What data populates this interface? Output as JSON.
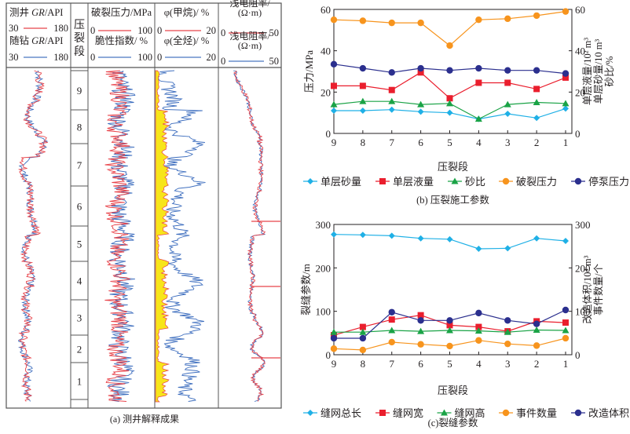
{
  "panel_a": {
    "caption": "(a) 测井解释成果",
    "columns": [
      {
        "id": "gr",
        "lines": [
          {
            "label": "测井 GR/API",
            "label_plain": "测井 ",
            "label_italic": "GR",
            "label_unit": "/API",
            "min": "30",
            "max": "180",
            "color": "#e8434a"
          },
          {
            "label": "随钻 GR/API",
            "label_plain": "随钻 ",
            "label_italic": "GR",
            "label_unit": "/API",
            "min": "30",
            "max": "180",
            "color": "#4a78c0"
          }
        ]
      },
      {
        "id": "stage",
        "title": [
          "压",
          "裂",
          "段"
        ]
      },
      {
        "id": "frac",
        "lines": [
          {
            "label": "破裂压力/MPa",
            "min": "0",
            "max": "100",
            "color": "#e8434a"
          },
          {
            "label": "脆性指数/ %",
            "min": "0",
            "max": "100",
            "color": "#4a78c0"
          }
        ]
      },
      {
        "id": "gas",
        "lines": [
          {
            "label": "φ(甲烷)/ %",
            "min": "0",
            "max": "20",
            "color": "#e8434a"
          },
          {
            "label": "φ(全烃)/ %",
            "min": "0",
            "max": "20",
            "color": "#4a78c0"
          }
        ]
      },
      {
        "id": "res",
        "lines": [
          {
            "label": "浅电阻率/",
            "label2": "(Ω·m)",
            "min": "0",
            "max": "50",
            "color": "#e8434a"
          },
          {
            "label": "浅电阻率/",
            "label2": "(Ω·m)",
            "min": "0",
            "max": "50",
            "color": "#4a78c0"
          }
        ]
      }
    ],
    "stages": [
      "9",
      "8",
      "7",
      "6",
      "5",
      "4",
      "3",
      "2",
      "1"
    ],
    "fill_color": "#f7e51a"
  },
  "chart_data": [
    {
      "type": "line",
      "title": "(b) 压裂施工参数",
      "xlabel": "压裂段",
      "ylabel": "压力/MPa",
      "y2label": [
        "单层液量/10² m³",
        "单层砂量/10 m³",
        "砂比/%"
      ],
      "categories": [
        "9",
        "8",
        "7",
        "6",
        "5",
        "4",
        "3",
        "2",
        "1"
      ],
      "xticks": [
        "9",
        "8",
        "7",
        "6",
        "5",
        "4",
        "3",
        "2",
        "1"
      ],
      "ylim": [
        0,
        60
      ],
      "yticks": [
        "0",
        "20",
        "40",
        "60"
      ],
      "y2lim": [
        0,
        60
      ],
      "y2ticks": [
        "0",
        "20",
        "40",
        "60"
      ],
      "legend_position": "bottom",
      "series": [
        {
          "name": "单层砂量",
          "marker": "diamond",
          "color": "#1fb0e6",
          "axis": "right",
          "values": [
            11,
            11,
            11.5,
            10.5,
            10,
            7,
            9.5,
            7.5,
            12
          ]
        },
        {
          "name": "单层液量",
          "marker": "square",
          "color": "#ea1e2d",
          "axis": "right",
          "values": [
            23,
            23,
            21,
            29.5,
            17,
            24.5,
            24.5,
            21.5,
            27
          ]
        },
        {
          "name": "砂比",
          "marker": "triangle",
          "color": "#1aa346",
          "axis": "right",
          "values": [
            14,
            15.5,
            15.5,
            14,
            14.5,
            7,
            14,
            15,
            14.5
          ]
        },
        {
          "name": "破裂压力",
          "marker": "circle",
          "color": "#f7941d",
          "axis": "left",
          "values": [
            55,
            54.5,
            53.5,
            53.5,
            42.5,
            55,
            55.5,
            57,
            59
          ]
        },
        {
          "name": "停泵压力",
          "marker": "circle",
          "color": "#2b2f8e",
          "axis": "left",
          "values": [
            33.5,
            31.5,
            29.5,
            31.5,
            30.5,
            31.5,
            30.5,
            30.5,
            29
          ]
        }
      ]
    },
    {
      "type": "line",
      "title": "(c)裂缝参数",
      "xlabel": "压裂段",
      "ylabel": "裂缝参数/m",
      "y2label": [
        "改造体积/10⁴ m³",
        "事件数量/个"
      ],
      "categories": [
        "9",
        "8",
        "7",
        "6",
        "5",
        "4",
        "3",
        "2",
        "1"
      ],
      "xticks": [
        "9",
        "8",
        "7",
        "6",
        "5",
        "4",
        "3",
        "2",
        "1"
      ],
      "ylim": [
        0,
        300
      ],
      "yticks": [
        "0",
        "100",
        "200",
        "300"
      ],
      "y2lim": [
        0,
        300
      ],
      "y2ticks": [
        "0",
        "100",
        "200",
        "300"
      ],
      "legend_position": "bottom",
      "series": [
        {
          "name": "缝网总长",
          "marker": "diamond",
          "color": "#1fb0e6",
          "axis": "left",
          "values": [
            277,
            276,
            274,
            268,
            266,
            244,
            245,
            268,
            262
          ]
        },
        {
          "name": "缝网宽",
          "marker": "square",
          "color": "#ea1e2d",
          "axis": "left",
          "values": [
            45,
            64,
            81,
            91,
            68,
            64,
            54,
            77,
            74
          ]
        },
        {
          "name": "缝网高",
          "marker": "triangle",
          "color": "#1aa346",
          "axis": "left",
          "values": [
            52,
            52,
            56,
            54,
            56,
            55,
            52,
            57,
            56
          ]
        },
        {
          "name": "事件数量",
          "marker": "circle",
          "color": "#f7941d",
          "axis": "right",
          "values": [
            14,
            11,
            29,
            24,
            20,
            33,
            25,
            21,
            38
          ]
        },
        {
          "name": "改造体积",
          "marker": "circle",
          "color": "#2b2f8e",
          "axis": "right",
          "values": [
            38,
            38,
            98,
            79,
            79,
            96,
            79,
            71,
            103
          ]
        }
      ]
    }
  ]
}
